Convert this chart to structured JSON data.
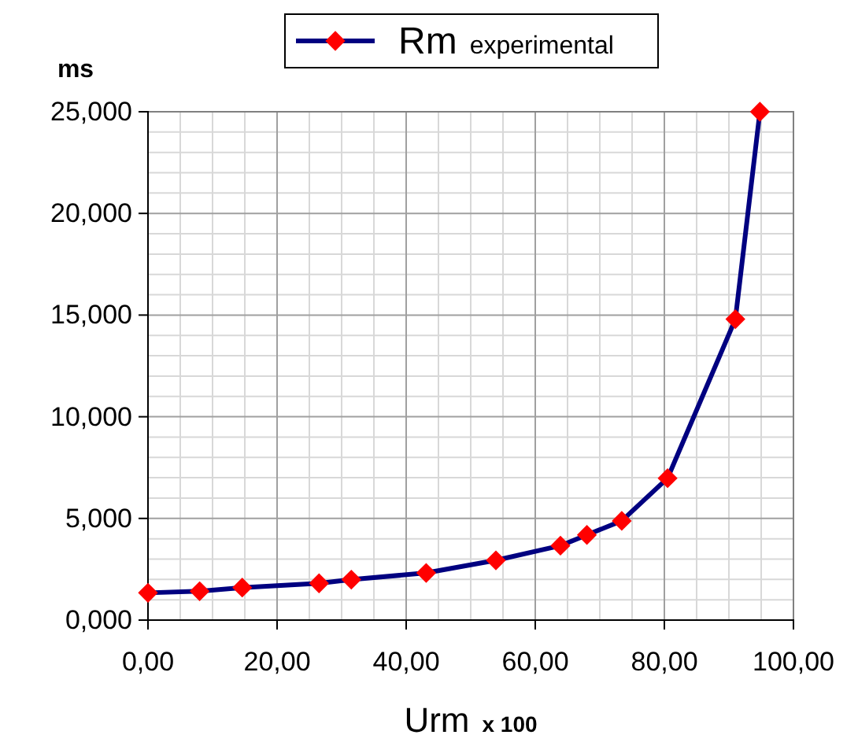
{
  "chart_data": {
    "type": "line",
    "xlabel": "Urm x 100",
    "ylabel": "ms",
    "x": [
      0,
      8,
      14.6,
      26.5,
      31.5,
      43.1,
      53.9,
      63.9,
      68,
      73.4,
      80.5,
      91,
      94.8
    ],
    "series": [
      {
        "name": "Rm experimental",
        "color": "#000080",
        "values": [
          1.34,
          1.42,
          1.6,
          1.81,
          1.99,
          2.32,
          2.94,
          3.66,
          4.19,
          4.88,
          6.98,
          14.8,
          25
        ]
      }
    ],
    "xlim": [
      0,
      100
    ],
    "xticks": [
      {
        "value": 0,
        "label": "0,00"
      },
      {
        "value": 20,
        "label": "20,00"
      },
      {
        "value": 40,
        "label": "40,00"
      },
      {
        "value": 60,
        "label": "60,00"
      },
      {
        "value": 80,
        "label": "80,00"
      },
      {
        "value": 100,
        "label": "100,00"
      }
    ],
    "ylim": [
      0,
      25
    ],
    "yticks": [
      {
        "value": 0,
        "label": "0,000"
      },
      {
        "value": 5,
        "label": "5,000"
      },
      {
        "value": 10,
        "label": "10,000"
      },
      {
        "value": 15,
        "label": "15,000"
      },
      {
        "value": 20,
        "label": "20,000"
      },
      {
        "value": 25,
        "label": "25,000"
      }
    ],
    "grid": true,
    "legend": "top",
    "marker": "diamond",
    "line_style": "solid"
  }
}
